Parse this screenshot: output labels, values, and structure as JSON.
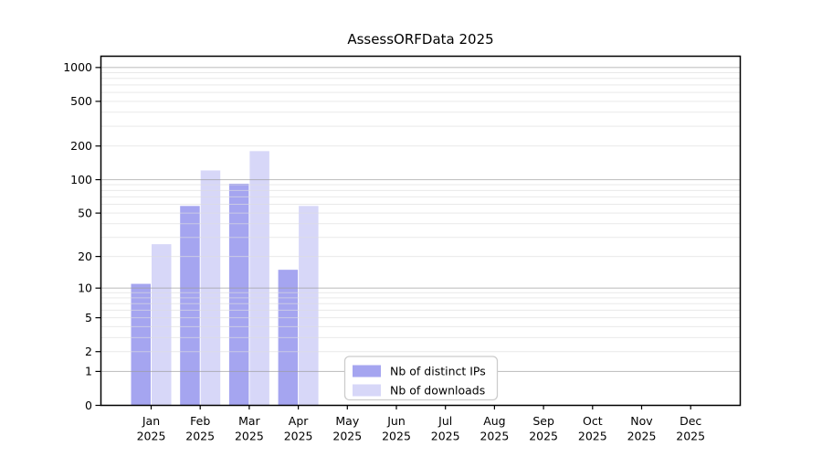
{
  "title": "AssessORFData 2025",
  "legend": {
    "items": [
      {
        "label": "Nb of distinct IPs",
        "color": "#a5a5f0"
      },
      {
        "label": "Nb of downloads",
        "color": "#d7d7f8"
      }
    ]
  },
  "colors": {
    "bar_dark": "#a5a5f0",
    "bar_light": "#d7d7f8",
    "major_grid": "#9a9a9a",
    "minor_grid": "#dedede",
    "spine": "#000000",
    "legend_border": "#cccccc",
    "background": "#ffffff"
  },
  "chart_data": {
    "type": "bar",
    "title": "AssessORFData 2025",
    "categories": [
      "Jan",
      "Feb",
      "Mar",
      "Apr",
      "May",
      "Jun",
      "Jul",
      "Aug",
      "Sep",
      "Oct",
      "Nov",
      "Dec"
    ],
    "x_sublabel": "2025",
    "series": [
      {
        "name": "Nb of distinct IPs",
        "color": "#a5a5f0",
        "values": [
          11,
          58,
          92,
          15,
          0,
          0,
          0,
          0,
          0,
          0,
          0,
          0
        ]
      },
      {
        "name": "Nb of downloads",
        "color": "#d7d7f8",
        "values": [
          26,
          121,
          180,
          58,
          0,
          0,
          0,
          0,
          0,
          0,
          0,
          0
        ]
      }
    ],
    "y_axis": {
      "scale": "log1p",
      "ticks": [
        0,
        1,
        2,
        5,
        10,
        20,
        50,
        100,
        200,
        500,
        1000
      ],
      "range": [
        0,
        1000
      ],
      "major_gridlines": [
        1,
        10,
        100,
        1000
      ],
      "minor_gridlines_per_decade": [
        2,
        3,
        4,
        5,
        6,
        7,
        8,
        9
      ]
    },
    "grid": "horizontal",
    "legend_position": "lower-center"
  }
}
